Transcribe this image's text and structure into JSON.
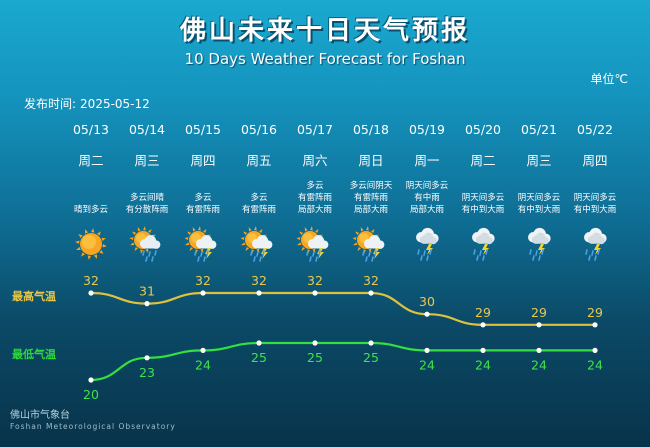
{
  "title": "佛山未来十日天气预报",
  "subtitle": "10 Days Weather Forecast for Foshan",
  "unit": "单位℃",
  "publish_label": "发布时间:",
  "publish_date": "2025-05-12",
  "high_label": "最高气温",
  "low_label": "最低气温",
  "footer_cn": "佛山市气象台",
  "footer_en": "Foshan Meteorological Observatory",
  "colors": {
    "high_line": "#e0c040",
    "low_line": "#33e040",
    "high_text": "#ecc94b",
    "low_text": "#3fe24f"
  },
  "days": [
    {
      "date": "05/13",
      "weekday": "周二",
      "weather": [
        "晴到多云"
      ],
      "icon": "sunny-icon",
      "high": 32,
      "low": 20
    },
    {
      "date": "05/14",
      "weekday": "周三",
      "weather": [
        "多云间晴",
        "有分散阵雨"
      ],
      "icon": "sun-cloud-rain-icon",
      "high": 31,
      "low": 23
    },
    {
      "date": "05/15",
      "weekday": "周四",
      "weather": [
        "多云",
        "有雷阵雨"
      ],
      "icon": "sun-cloud-thunder-icon",
      "high": 32,
      "low": 24
    },
    {
      "date": "05/16",
      "weekday": "周五",
      "weather": [
        "多云",
        "有雷阵雨"
      ],
      "icon": "sun-cloud-thunder-icon",
      "high": 32,
      "low": 25
    },
    {
      "date": "05/17",
      "weekday": "周六",
      "weather": [
        "多云",
        "有雷阵雨",
        "局部大雨"
      ],
      "icon": "sun-cloud-thunder-icon",
      "high": 32,
      "low": 25
    },
    {
      "date": "05/18",
      "weekday": "周日",
      "weather": [
        "多云间阴天",
        "有雷阵雨",
        "局部大雨"
      ],
      "icon": "sun-cloud-thunder-icon",
      "high": 32,
      "low": 25
    },
    {
      "date": "05/19",
      "weekday": "周一",
      "weather": [
        "阴天间多云",
        "有中雨",
        "局部大雨"
      ],
      "icon": "cloud-thunder-rain-icon",
      "high": 30,
      "low": 24
    },
    {
      "date": "05/20",
      "weekday": "周二",
      "weather": [
        "阴天间多云",
        "有中到大雨"
      ],
      "icon": "cloud-thunder-rain-icon",
      "high": 29,
      "low": 24
    },
    {
      "date": "05/21",
      "weekday": "周三",
      "weather": [
        "阴天间多云",
        "有中到大雨"
      ],
      "icon": "cloud-thunder-rain-icon",
      "high": 29,
      "low": 24
    },
    {
      "date": "05/22",
      "weekday": "周四",
      "weather": [
        "阴天间多云",
        "有中到大雨"
      ],
      "icon": "cloud-thunder-rain-icon",
      "high": 29,
      "low": 24
    }
  ]
}
